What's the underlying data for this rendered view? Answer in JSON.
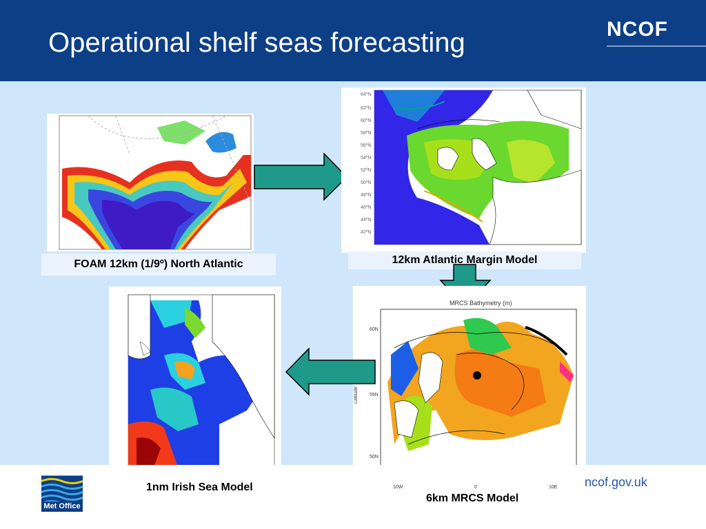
{
  "header": {
    "title": "Operational shelf seas forecasting",
    "brand": "NCOF"
  },
  "panels": {
    "foam": {
      "caption": "FOAM 12km (1/9º) North Atlantic"
    },
    "atlantic_margin": {
      "caption": "12km Atlantic Margin Model"
    },
    "mrcs": {
      "caption": "6km MRCS Model",
      "plot_title": "MRCS Bathymetry (m)",
      "y_label": "Latitude",
      "y_ticks": [
        "60N",
        "55N",
        "50N"
      ],
      "x_ticks": [
        "10W",
        "0",
        "10E"
      ]
    },
    "irish_sea": {
      "caption": "1nm Irish Sea Model"
    }
  },
  "footer": {
    "url": "ncof.gov.uk",
    "met_office": "Met Office"
  },
  "colors": {
    "header_bg": "#0d3f86",
    "page_bg": "#cfe6fb",
    "arrow_fill": "#1f9a8a"
  }
}
